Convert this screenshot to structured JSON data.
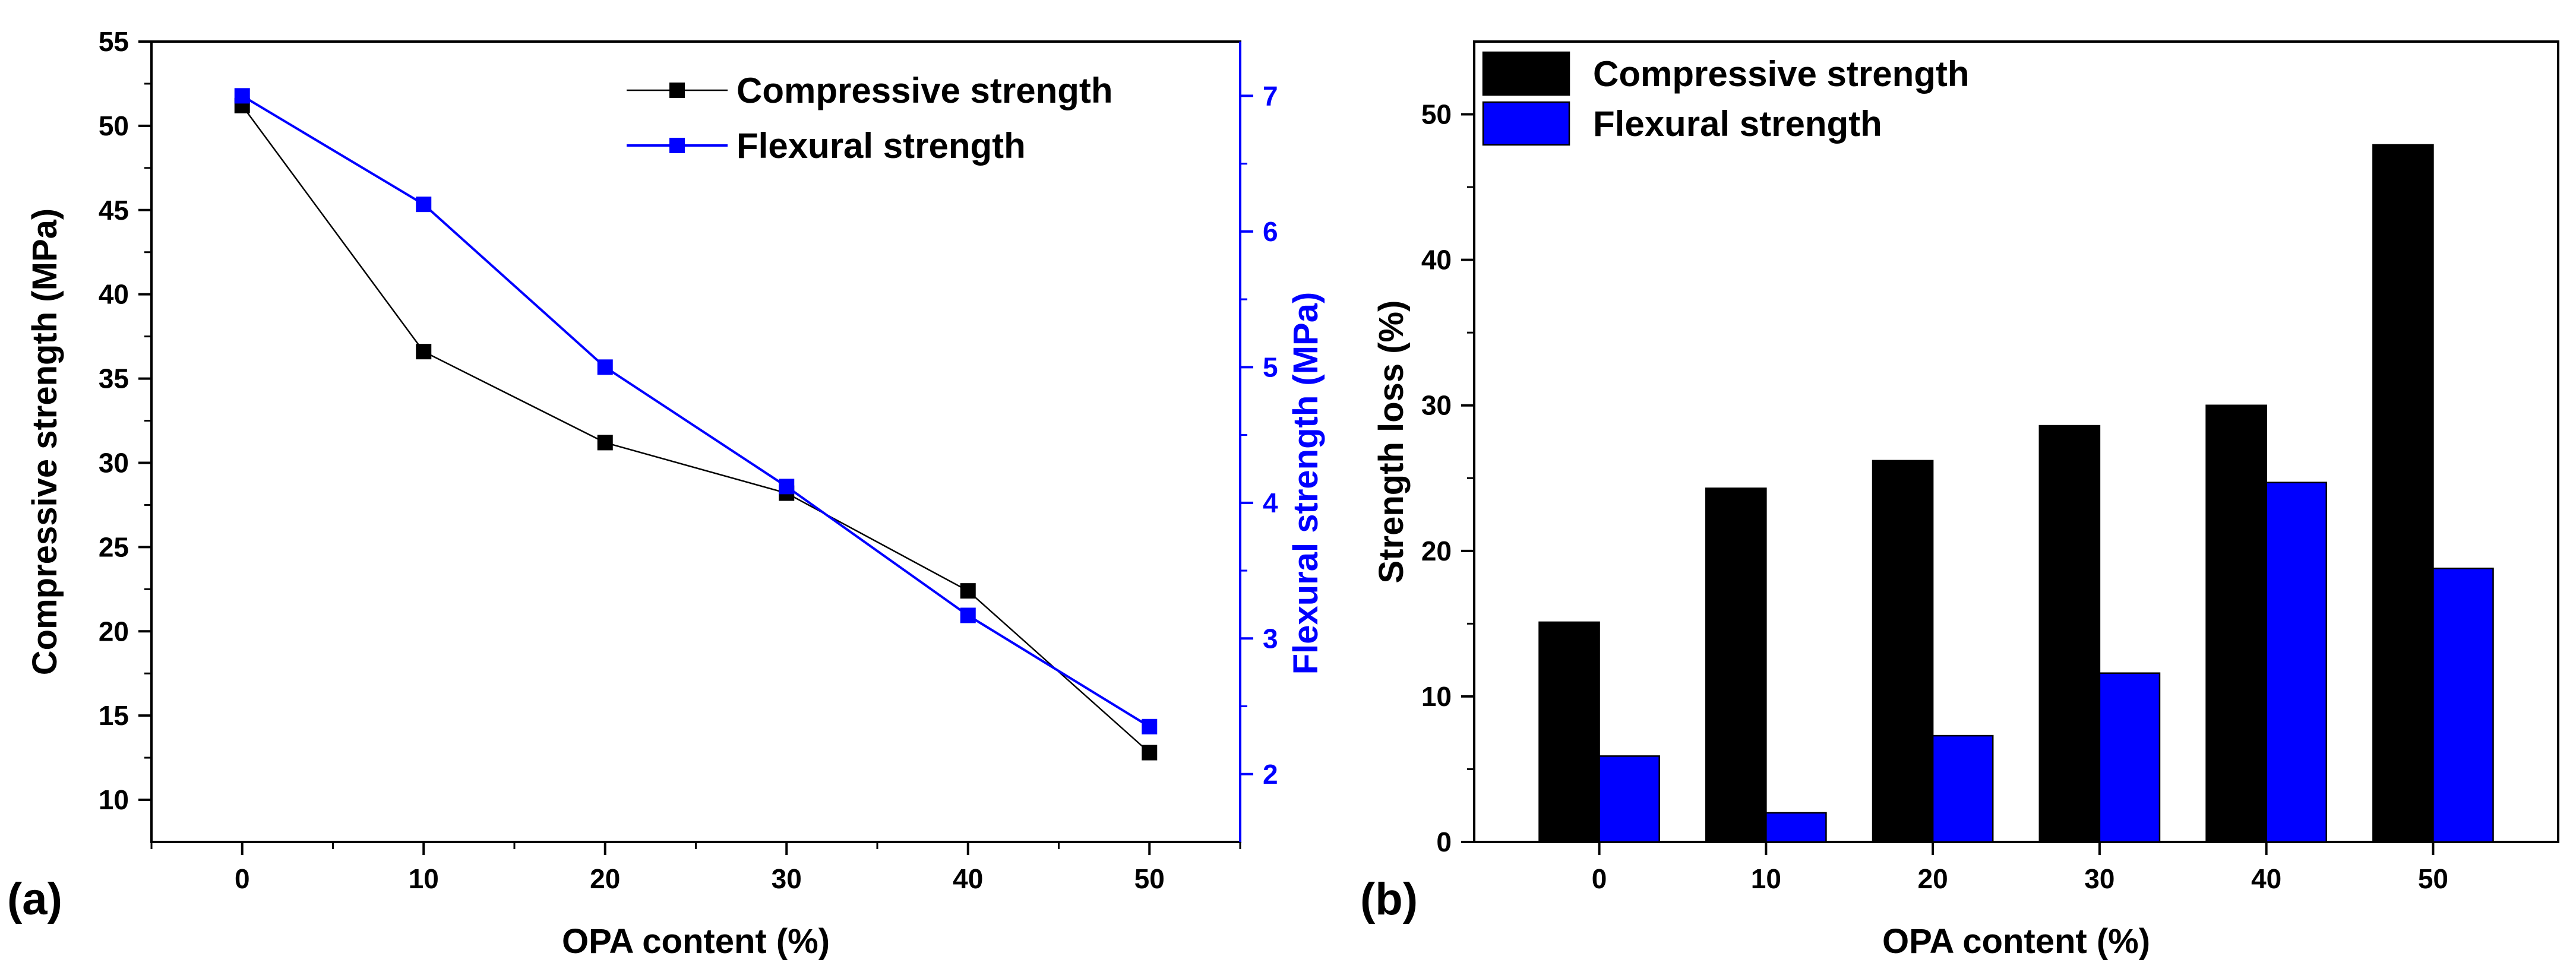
{
  "chart_data": [
    {
      "type": "line",
      "panel_label": "(a)",
      "xlabel": "OPA content (%)",
      "ylabel": "Compressive strength (MPa)",
      "y2label": "Flexural strength (MPa)",
      "xlim": [
        -5,
        55
      ],
      "ylim": [
        7.5,
        55
      ],
      "y2lim": [
        1.5,
        7.4
      ],
      "x_ticks": [
        0,
        10,
        20,
        30,
        40,
        50
      ],
      "y_ticks": [
        10,
        15,
        20,
        25,
        30,
        35,
        40,
        45,
        50,
        55
      ],
      "y2_ticks": [
        2,
        3,
        4,
        5,
        6,
        7
      ],
      "legend_position": "top-right",
      "x": [
        0,
        10,
        20,
        30,
        40,
        50
      ],
      "series": [
        {
          "name": "Compressive strength",
          "axis": "left",
          "color": "#000000",
          "values": [
            51.2,
            36.6,
            31.2,
            28.2,
            22.4,
            12.8
          ]
        },
        {
          "name": "Flexural strength",
          "axis": "right",
          "color": "#0000ff",
          "values": [
            7.0,
            6.2,
            5.0,
            4.12,
            3.17,
            2.35
          ]
        }
      ]
    },
    {
      "type": "bar",
      "panel_label": "(b)",
      "xlabel": "OPA content (%)",
      "ylabel": "Strength loss (%)",
      "categories": [
        "0",
        "10",
        "20",
        "30",
        "40",
        "50"
      ],
      "ylim": [
        0,
        55
      ],
      "y_ticks": [
        0,
        10,
        20,
        30,
        40,
        50
      ],
      "legend_position": "top-left",
      "series": [
        {
          "name": "Compressive strength",
          "color": "#000000",
          "values": [
            15.1,
            24.3,
            26.2,
            28.6,
            30.0,
            47.9
          ]
        },
        {
          "name": "Flexural strength",
          "color": "#0000ff",
          "values": [
            5.9,
            2.0,
            7.3,
            11.6,
            24.7,
            18.8
          ]
        }
      ]
    }
  ]
}
